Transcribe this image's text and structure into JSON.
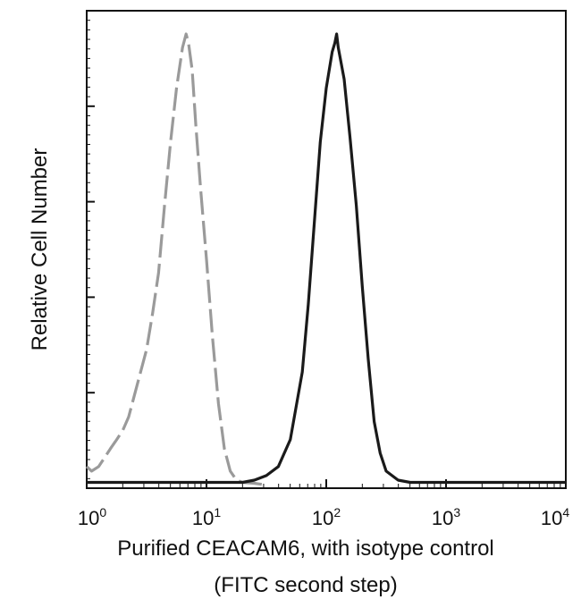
{
  "chart_data": {
    "type": "line",
    "title": "",
    "xlabel": "Purified CEACAM6, with isotype control",
    "xlabel_line2": "(FITC second step)",
    "ylabel": "Relative Cell Number",
    "x_scale": "log",
    "xlim": [
      1,
      10000
    ],
    "ylim": [
      0,
      100
    ],
    "grid": false,
    "x_ticks": [
      {
        "base": "10",
        "exp": "0",
        "value": 1
      },
      {
        "base": "10",
        "exp": "1",
        "value": 10
      },
      {
        "base": "10",
        "exp": "2",
        "value": 100
      },
      {
        "base": "10",
        "exp": "3",
        "value": 1000
      },
      {
        "base": "10",
        "exp": "4",
        "value": 10000
      }
    ],
    "y_major_ticks": [
      20,
      40,
      60,
      80,
      100
    ],
    "series": [
      {
        "style": "dashed",
        "color": "#9a9a9a",
        "x": [
          1,
          1.1,
          1.26,
          1.41,
          1.58,
          1.78,
          2,
          2.24,
          2.51,
          2.82,
          3.16,
          3.55,
          3.98,
          4.47,
          5.01,
          5.62,
          6.31,
          6.76,
          7.08,
          7.59,
          8.13,
          8.91,
          10,
          11.2,
          12.6,
          14.1,
          15.8,
          17.8,
          20,
          25,
          30
        ],
        "y": [
          4,
          3,
          4,
          6,
          8,
          10,
          12,
          15,
          20,
          25,
          30,
          38,
          47,
          62,
          76,
          88,
          97,
          100,
          98,
          92,
          80,
          66,
          50,
          33,
          18,
          8,
          3,
          1,
          0.5,
          0.3,
          0
        ]
      },
      {
        "style": "solid",
        "color": "#1a1a1a",
        "x": [
          1,
          10,
          20,
          25.1,
          31.6,
          39.8,
          50.1,
          63.1,
          70.8,
          79.4,
          89.1,
          100,
          112,
          118,
          122,
          126,
          141,
          158,
          178,
          200,
          224,
          251,
          282,
          316,
          398,
          501,
          1000,
          5000,
          10000
        ],
        "y": [
          0.5,
          0.5,
          0.5,
          1,
          2,
          4,
          10,
          25,
          40,
          58,
          76,
          88,
          96,
          98,
          100,
          97,
          90,
          77,
          62,
          44,
          28,
          14,
          7,
          3,
          1,
          0.5,
          0.5,
          0.5,
          0.5
        ]
      }
    ]
  }
}
